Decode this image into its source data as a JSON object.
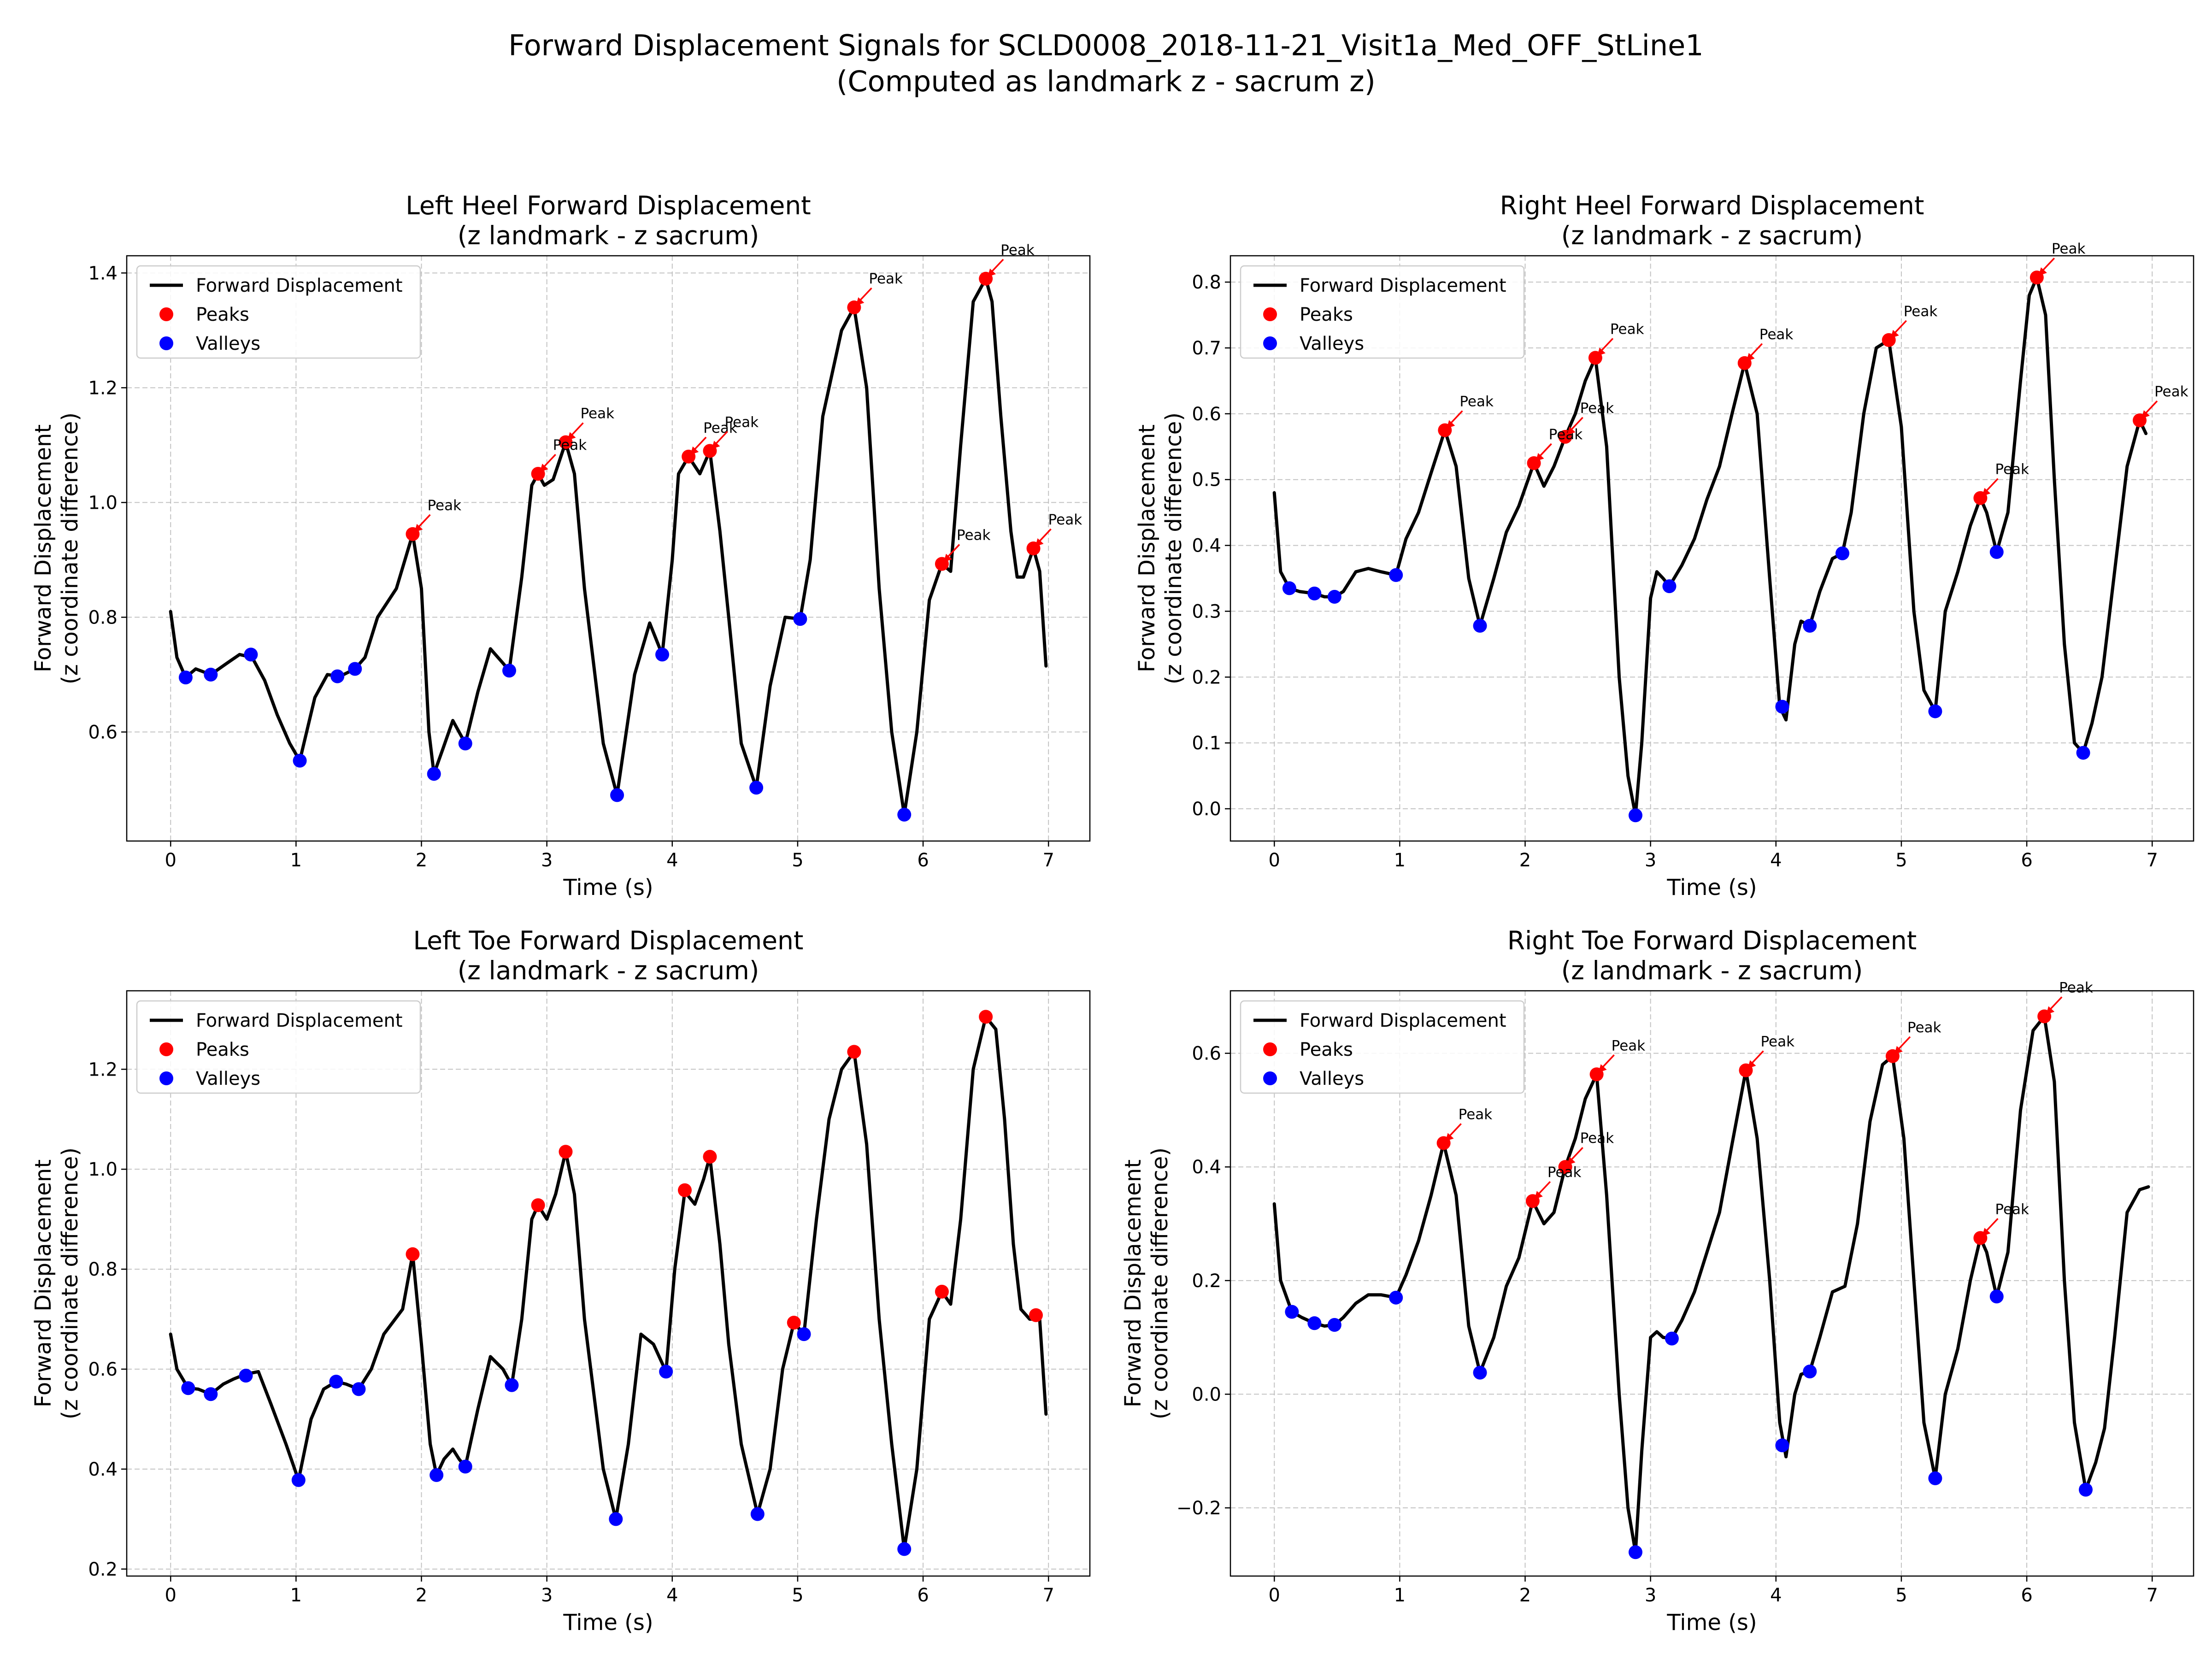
{
  "figure": {
    "title_line1": "Forward Displacement Signals for SCLD0008_2018-11-21_Visit1a_Med_OFF_StLine1",
    "title_line2": "(Computed as landmark z - sacrum z)"
  },
  "legend": {
    "line": "Forward Displacement",
    "peaks": "Peaks",
    "valleys": "Valleys"
  },
  "colors": {
    "line": "#000000",
    "peaks": "#ff0000",
    "valleys": "#0000ff",
    "grid": "#b0b0b0"
  },
  "chart_data": [
    {
      "type": "line",
      "title": "Left Heel Forward Displacement",
      "subtitle": "(z landmark - z sacrum)",
      "xlabel": "Time (s)",
      "ylabel": "Forward Displacement",
      "ylabel2": "(z coordinate difference)",
      "xlim": [
        -0.35,
        7.33
      ],
      "ylim": [
        0.41,
        1.43
      ],
      "xticks": [
        0,
        1,
        2,
        3,
        4,
        5,
        6,
        7
      ],
      "yticks": [
        0.6,
        0.8,
        1.0,
        1.2,
        1.4
      ],
      "ytick_labels": [
        "0.6",
        "0.8",
        "1.0",
        "1.2",
        "1.4"
      ],
      "grid": true,
      "legend_position": "upper-left",
      "peak_annotation": "Peak",
      "annotate_peaks": true,
      "line": {
        "x": [
          0,
          0.05,
          0.12,
          0.2,
          0.32,
          0.45,
          0.55,
          0.65,
          0.75,
          0.85,
          0.95,
          1.03,
          1.15,
          1.25,
          1.35,
          1.47,
          1.55,
          1.65,
          1.8,
          1.93,
          2.0,
          2.06,
          2.1,
          2.17,
          2.25,
          2.3,
          2.35,
          2.45,
          2.55,
          2.65,
          2.7,
          2.8,
          2.88,
          2.93,
          2.98,
          3.05,
          3.15,
          3.22,
          3.3,
          3.45,
          3.56,
          3.7,
          3.82,
          3.92,
          4.0,
          4.05,
          4.13,
          4.22,
          4.3,
          4.38,
          4.45,
          4.55,
          4.67,
          4.78,
          4.9,
          5.02,
          5.1,
          5.2,
          5.35,
          5.45,
          5.55,
          5.65,
          5.75,
          5.85,
          5.95,
          6.05,
          6.15,
          6.22,
          6.3,
          6.4,
          6.5,
          6.55,
          6.62,
          6.7,
          6.75,
          6.8,
          6.88,
          6.93,
          6.98
        ],
        "y": [
          0.81,
          0.73,
          0.695,
          0.71,
          0.7,
          0.72,
          0.735,
          0.73,
          0.69,
          0.63,
          0.58,
          0.55,
          0.66,
          0.7,
          0.697,
          0.71,
          0.73,
          0.8,
          0.85,
          0.945,
          0.85,
          0.6,
          0.527,
          0.57,
          0.62,
          0.6,
          0.58,
          0.67,
          0.745,
          0.72,
          0.707,
          0.87,
          1.03,
          1.05,
          1.03,
          1.04,
          1.105,
          1.05,
          0.85,
          0.58,
          0.49,
          0.7,
          0.79,
          0.735,
          0.9,
          1.05,
          1.08,
          1.05,
          1.09,
          0.95,
          0.8,
          0.58,
          0.503,
          0.68,
          0.8,
          0.797,
          0.9,
          1.15,
          1.3,
          1.34,
          1.2,
          0.85,
          0.6,
          0.456,
          0.6,
          0.83,
          0.893,
          0.88,
          1.1,
          1.35,
          1.39,
          1.35,
          1.15,
          0.95,
          0.87,
          0.87,
          0.92,
          0.88,
          0.715
        ]
      },
      "peaks": {
        "x": [
          1.93,
          2.93,
          3.15,
          4.13,
          4.3,
          5.45,
          6.15,
          6.5,
          6.88
        ],
        "y": [
          0.945,
          1.05,
          1.105,
          1.08,
          1.09,
          1.34,
          0.893,
          1.39,
          0.92
        ]
      },
      "valleys": {
        "x": [
          0.12,
          0.32,
          0.64,
          1.03,
          1.33,
          1.47,
          2.1,
          2.35,
          2.7,
          3.56,
          3.92,
          4.67,
          5.02,
          5.85
        ],
        "y": [
          0.695,
          0.7,
          0.735,
          0.55,
          0.697,
          0.71,
          0.527,
          0.58,
          0.707,
          0.49,
          0.735,
          0.503,
          0.797,
          0.456
        ]
      }
    },
    {
      "type": "line",
      "title": "Right Heel Forward Displacement",
      "subtitle": "(z landmark - z sacrum)",
      "xlabel": "Time (s)",
      "ylabel": "Forward Displacement",
      "ylabel2": "(z coordinate difference)",
      "xlim": [
        -0.35,
        7.33
      ],
      "ylim": [
        -0.049,
        0.84
      ],
      "xticks": [
        0,
        1,
        2,
        3,
        4,
        5,
        6,
        7
      ],
      "yticks": [
        0.0,
        0.1,
        0.2,
        0.3,
        0.4,
        0.5,
        0.6,
        0.7,
        0.8
      ],
      "ytick_labels": [
        "0.0",
        "0.1",
        "0.2",
        "0.3",
        "0.4",
        "0.5",
        "0.6",
        "0.7",
        "0.8"
      ],
      "grid": true,
      "legend_position": "upper-left",
      "peak_annotation": "Peak",
      "annotate_peaks": true,
      "line": {
        "x": [
          0,
          0.05,
          0.12,
          0.2,
          0.32,
          0.4,
          0.48,
          0.55,
          0.65,
          0.75,
          0.85,
          0.97,
          1.05,
          1.15,
          1.25,
          1.36,
          1.45,
          1.55,
          1.64,
          1.75,
          1.85,
          1.95,
          2.07,
          2.15,
          2.23,
          2.32,
          2.4,
          2.48,
          2.56,
          2.65,
          2.75,
          2.82,
          2.88,
          2.93,
          3.0,
          3.05,
          3.1,
          3.15,
          3.25,
          3.35,
          3.45,
          3.55,
          3.65,
          3.75,
          3.85,
          3.95,
          4.03,
          4.08,
          4.15,
          4.2,
          4.27,
          4.35,
          4.45,
          4.53,
          4.6,
          4.7,
          4.8,
          4.9,
          5.0,
          5.1,
          5.18,
          5.27,
          5.35,
          5.45,
          5.55,
          5.63,
          5.68,
          5.76,
          5.85,
          5.95,
          6.02,
          6.08,
          6.15,
          6.22,
          6.3,
          6.38,
          6.45,
          6.52,
          6.6,
          6.7,
          6.8,
          6.9,
          6.95
        ],
        "y": [
          0.48,
          0.36,
          0.335,
          0.33,
          0.327,
          0.322,
          0.322,
          0.33,
          0.36,
          0.365,
          0.36,
          0.355,
          0.41,
          0.45,
          0.51,
          0.575,
          0.52,
          0.35,
          0.278,
          0.35,
          0.42,
          0.46,
          0.525,
          0.49,
          0.52,
          0.565,
          0.6,
          0.65,
          0.685,
          0.55,
          0.2,
          0.05,
          -0.01,
          0.1,
          0.32,
          0.36,
          0.35,
          0.338,
          0.37,
          0.41,
          0.47,
          0.52,
          0.6,
          0.677,
          0.6,
          0.35,
          0.155,
          0.135,
          0.25,
          0.285,
          0.278,
          0.33,
          0.38,
          0.388,
          0.45,
          0.6,
          0.7,
          0.712,
          0.58,
          0.3,
          0.18,
          0.148,
          0.3,
          0.36,
          0.43,
          0.472,
          0.45,
          0.39,
          0.45,
          0.65,
          0.78,
          0.807,
          0.75,
          0.5,
          0.25,
          0.1,
          0.085,
          0.13,
          0.2,
          0.36,
          0.52,
          0.59,
          0.57
        ]
      },
      "peaks": {
        "x": [
          1.36,
          2.07,
          2.32,
          2.56,
          3.75,
          4.9,
          5.63,
          6.08,
          6.9
        ],
        "y": [
          0.575,
          0.525,
          0.565,
          0.685,
          0.677,
          0.712,
          0.472,
          0.807,
          0.59
        ]
      },
      "valleys": {
        "x": [
          0.12,
          0.32,
          0.48,
          0.97,
          1.64,
          2.88,
          3.15,
          4.05,
          4.27,
          4.53,
          5.27,
          5.76,
          6.45
        ],
        "y": [
          0.335,
          0.327,
          0.322,
          0.355,
          0.278,
          -0.01,
          0.338,
          0.155,
          0.278,
          0.388,
          0.148,
          0.39,
          0.085
        ]
      }
    },
    {
      "type": "line",
      "title": "Left Toe Forward Displacement",
      "subtitle": "(z landmark - z sacrum)",
      "xlabel": "Time (s)",
      "ylabel": "Forward Displacement",
      "ylabel2": "(z coordinate difference)",
      "xlim": [
        -0.35,
        7.33
      ],
      "ylim": [
        0.186,
        1.357
      ],
      "xticks": [
        0,
        1,
        2,
        3,
        4,
        5,
        6,
        7
      ],
      "yticks": [
        0.2,
        0.4,
        0.6,
        0.8,
        1.0,
        1.2
      ],
      "ytick_labels": [
        "0.2",
        "0.4",
        "0.6",
        "0.8",
        "1.0",
        "1.2"
      ],
      "grid": true,
      "legend_position": "upper-left",
      "peak_annotation": "Peak",
      "annotate_peaks": false,
      "line": {
        "x": [
          0,
          0.05,
          0.14,
          0.22,
          0.32,
          0.42,
          0.5,
          0.6,
          0.7,
          0.8,
          0.92,
          1.02,
          1.12,
          1.22,
          1.32,
          1.4,
          1.5,
          1.6,
          1.7,
          1.85,
          1.93,
          2.0,
          2.07,
          2.12,
          2.18,
          2.25,
          2.3,
          2.35,
          2.45,
          2.55,
          2.65,
          2.72,
          2.8,
          2.88,
          2.93,
          3.0,
          3.07,
          3.15,
          3.22,
          3.3,
          3.45,
          3.55,
          3.65,
          3.75,
          3.85,
          3.95,
          4.02,
          4.1,
          4.18,
          4.25,
          4.3,
          4.38,
          4.45,
          4.55,
          4.68,
          4.78,
          4.88,
          4.97,
          5.05,
          5.15,
          5.25,
          5.35,
          5.45,
          5.55,
          5.65,
          5.75,
          5.85,
          5.95,
          6.05,
          6.15,
          6.22,
          6.3,
          6.4,
          6.5,
          6.58,
          6.65,
          6.72,
          6.78,
          6.85,
          6.93,
          6.98
        ],
        "y": [
          0.67,
          0.6,
          0.562,
          0.56,
          0.55,
          0.57,
          0.58,
          0.59,
          0.595,
          0.53,
          0.45,
          0.378,
          0.5,
          0.56,
          0.575,
          0.57,
          0.56,
          0.6,
          0.67,
          0.72,
          0.83,
          0.65,
          0.45,
          0.388,
          0.42,
          0.44,
          0.42,
          0.405,
          0.52,
          0.625,
          0.6,
          0.568,
          0.7,
          0.9,
          0.928,
          0.9,
          0.95,
          1.035,
          0.95,
          0.7,
          0.4,
          0.3,
          0.45,
          0.67,
          0.65,
          0.595,
          0.8,
          0.955,
          0.93,
          0.98,
          1.025,
          0.85,
          0.65,
          0.45,
          0.31,
          0.4,
          0.6,
          0.693,
          0.67,
          0.9,
          1.1,
          1.2,
          1.235,
          1.05,
          0.7,
          0.45,
          0.24,
          0.4,
          0.7,
          0.755,
          0.73,
          0.9,
          1.2,
          1.305,
          1.28,
          1.1,
          0.85,
          0.72,
          0.7,
          0.7,
          0.51
        ]
      },
      "peaks": {
        "x": [
          1.93,
          2.93,
          3.15,
          4.1,
          4.3,
          4.97,
          5.45,
          6.15,
          6.5,
          6.9
        ],
        "y": [
          0.83,
          0.928,
          1.035,
          0.958,
          1.025,
          0.693,
          1.235,
          0.755,
          1.305,
          0.708
        ]
      },
      "valleys": {
        "x": [
          0.14,
          0.32,
          0.6,
          1.02,
          1.32,
          1.5,
          2.12,
          2.35,
          2.72,
          3.55,
          3.95,
          4.68,
          5.05,
          5.85
        ],
        "y": [
          0.562,
          0.55,
          0.587,
          0.378,
          0.575,
          0.56,
          0.388,
          0.405,
          0.568,
          0.3,
          0.595,
          0.31,
          0.67,
          0.24
        ]
      }
    },
    {
      "type": "line",
      "title": "Right Toe Forward Displacement",
      "subtitle": "(z landmark - z sacrum)",
      "xlabel": "Time (s)",
      "ylabel": "Forward Displacement",
      "ylabel2": "(z coordinate difference)",
      "xlim": [
        -0.35,
        7.33
      ],
      "ylim": [
        -0.32,
        0.71
      ],
      "xticks": [
        0,
        1,
        2,
        3,
        4,
        5,
        6,
        7
      ],
      "yticks": [
        -0.2,
        0.0,
        0.2,
        0.4,
        0.6
      ],
      "ytick_labels": [
        "−0.2",
        "0.0",
        "0.2",
        "0.4",
        "0.6"
      ],
      "grid": true,
      "legend_position": "upper-left",
      "peak_annotation": "Peak",
      "annotate_peaks": true,
      "line": {
        "x": [
          0,
          0.05,
          0.14,
          0.22,
          0.32,
          0.4,
          0.48,
          0.55,
          0.65,
          0.75,
          0.85,
          0.97,
          1.05,
          1.15,
          1.25,
          1.35,
          1.45,
          1.55,
          1.64,
          1.75,
          1.85,
          1.95,
          2.06,
          2.15,
          2.23,
          2.32,
          2.4,
          2.48,
          2.57,
          2.65,
          2.75,
          2.82,
          2.88,
          2.93,
          3.0,
          3.05,
          3.1,
          3.17,
          3.25,
          3.35,
          3.45,
          3.55,
          3.65,
          3.76,
          3.85,
          3.95,
          4.03,
          4.08,
          4.15,
          4.2,
          4.27,
          4.35,
          4.45,
          4.55,
          4.65,
          4.75,
          4.85,
          4.93,
          5.02,
          5.1,
          5.18,
          5.27,
          5.35,
          5.45,
          5.55,
          5.63,
          5.68,
          5.76,
          5.85,
          5.95,
          6.05,
          6.14,
          6.22,
          6.3,
          6.38,
          6.47,
          6.55,
          6.62,
          6.7,
          6.8,
          6.9,
          6.97
        ],
        "y": [
          0.335,
          0.2,
          0.145,
          0.135,
          0.125,
          0.12,
          0.122,
          0.135,
          0.16,
          0.175,
          0.175,
          0.17,
          0.21,
          0.27,
          0.35,
          0.442,
          0.35,
          0.12,
          0.038,
          0.1,
          0.19,
          0.24,
          0.34,
          0.3,
          0.32,
          0.4,
          0.45,
          0.52,
          0.563,
          0.35,
          0.0,
          -0.2,
          -0.278,
          -0.1,
          0.1,
          0.11,
          0.1,
          0.098,
          0.13,
          0.18,
          0.25,
          0.32,
          0.44,
          0.57,
          0.45,
          0.2,
          -0.05,
          -0.11,
          0.0,
          0.035,
          0.04,
          0.1,
          0.18,
          0.19,
          0.3,
          0.48,
          0.58,
          0.595,
          0.45,
          0.2,
          -0.05,
          -0.148,
          0.0,
          0.08,
          0.2,
          0.275,
          0.25,
          0.172,
          0.25,
          0.5,
          0.64,
          0.665,
          0.55,
          0.2,
          -0.05,
          -0.168,
          -0.12,
          -0.06,
          0.1,
          0.32,
          0.36,
          0.365
        ]
      },
      "peaks": {
        "x": [
          1.35,
          2.06,
          2.32,
          2.57,
          3.76,
          4.93,
          5.63,
          6.14
        ],
        "y": [
          0.442,
          0.34,
          0.4,
          0.563,
          0.57,
          0.595,
          0.275,
          0.665
        ]
      },
      "valleys": {
        "x": [
          0.14,
          0.32,
          0.48,
          0.97,
          1.64,
          2.88,
          3.17,
          4.05,
          4.27,
          5.27,
          5.76,
          6.47
        ],
        "y": [
          0.145,
          0.125,
          0.122,
          0.17,
          0.038,
          -0.278,
          0.098,
          -0.09,
          0.04,
          -0.148,
          0.172,
          -0.168
        ]
      }
    }
  ]
}
